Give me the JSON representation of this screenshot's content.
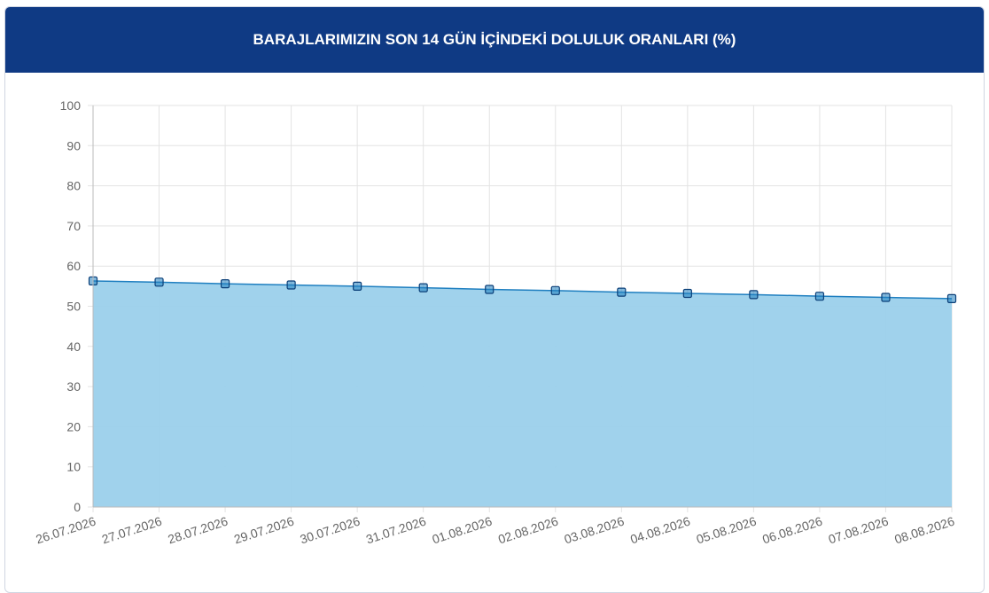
{
  "chart_data": {
    "type": "area",
    "title": "BARAJLARIMIZIN SON 14 GÜN İÇİNDEKİ DOLULUK ORANLARI (%)",
    "categories": [
      "26.07.2026",
      "27.07.2026",
      "28.07.2026",
      "29.07.2026",
      "30.07.2026",
      "31.07.2026",
      "01.08.2026",
      "02.08.2026",
      "03.08.2026",
      "04.08.2026",
      "05.08.2026",
      "06.08.2026",
      "07.08.2026",
      "08.08.2026"
    ],
    "values": [
      56.3,
      56.0,
      55.6,
      55.3,
      55.0,
      54.6,
      54.2,
      53.9,
      53.5,
      53.2,
      52.9,
      52.5,
      52.2,
      51.9
    ],
    "color": "#1f7fc0",
    "fill_color": "#9bd0eb",
    "ylim": [
      0,
      100
    ],
    "yticks": [
      0,
      10,
      20,
      30,
      40,
      50,
      60,
      70,
      80,
      90,
      100
    ],
    "grid": true
  }
}
